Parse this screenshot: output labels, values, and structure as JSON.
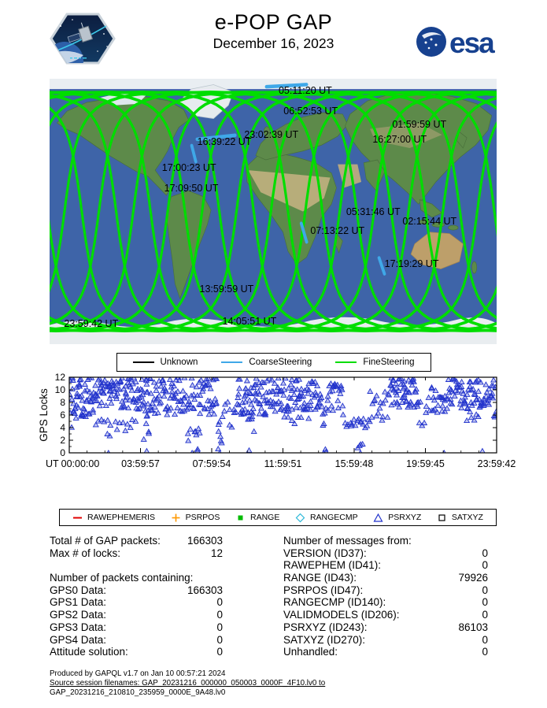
{
  "header": {
    "title": "e-POP GAP",
    "date": "December 16, 2023"
  },
  "logos": {
    "esa_text": "esa",
    "mission_patch": "e-POP mission patch"
  },
  "chart_data": [
    {
      "type": "line",
      "title": "e-POP ground tracks on world map",
      "projection": "equirectangular",
      "legend": [
        {
          "label": "Unknown",
          "color": "#000000"
        },
        {
          "label": "CoarseSteering",
          "color": "#3fa8e8"
        },
        {
          "label": "FineSteering",
          "color": "#00dd00"
        }
      ],
      "track_model": {
        "orbit_count": 13,
        "inclination_deg": 81,
        "lon_offset_deg": 12,
        "spacing_deg": 27.7,
        "color": "#00dd00",
        "stroke_width": 2.0
      },
      "coarse_segments": [
        [
          0.485,
          0.03,
          0.575,
          0.022
        ],
        [
          0.33,
          0.228,
          0.415,
          0.213
        ],
        [
          0.318,
          0.252,
          0.327,
          0.312
        ],
        [
          0.563,
          0.545,
          0.575,
          0.615
        ],
        [
          0.737,
          0.675,
          0.749,
          0.735
        ]
      ],
      "time_labels": [
        {
          "text": "05:11:20 UT",
          "x": 0.572,
          "y": 0.045
        },
        {
          "text": "06:52:53 UT",
          "x": 0.584,
          "y": 0.122
        },
        {
          "text": "01:59:59 UT",
          "x": 0.827,
          "y": 0.172
        },
        {
          "text": "16:27:00 UT",
          "x": 0.783,
          "y": 0.229
        },
        {
          "text": "23:02:39 UT",
          "x": 0.496,
          "y": 0.211
        },
        {
          "text": "16:39:22 UT",
          "x": 0.391,
          "y": 0.237
        },
        {
          "text": "17:00:23 UT",
          "x": 0.312,
          "y": 0.335
        },
        {
          "text": "17:09:50 UT",
          "x": 0.317,
          "y": 0.412
        },
        {
          "text": "05:31:46 UT",
          "x": 0.724,
          "y": 0.501
        },
        {
          "text": "07:13:22 UT",
          "x": 0.644,
          "y": 0.573
        },
        {
          "text": "02:15:44 UT",
          "x": 0.85,
          "y": 0.537
        },
        {
          "text": "17:19:29 UT",
          "x": 0.81,
          "y": 0.697
        },
        {
          "text": "13:59:59 UT",
          "x": 0.396,
          "y": 0.792
        },
        {
          "text": "14:05:51 UT",
          "x": 0.447,
          "y": 0.914
        },
        {
          "text": "23:59:42 UT",
          "x": 0.093,
          "y": 0.923
        }
      ]
    },
    {
      "type": "scatter",
      "marker": "triangle-open",
      "color": "#2233cc",
      "xlabel": "UT",
      "ylabel": "GPS Locks",
      "x_range_hours": [
        0,
        24
      ],
      "ylim": [
        0,
        12
      ],
      "yticks": [
        0,
        2,
        4,
        6,
        8,
        10,
        12
      ],
      "xticks": [
        {
          "hour": 0,
          "label": "00:00:00"
        },
        {
          "hour": 4,
          "label": "03:59:57"
        },
        {
          "hour": 8,
          "label": "07:59:54"
        },
        {
          "hour": 12,
          "label": "11:59:51"
        },
        {
          "hour": 16,
          "label": "15:59:48"
        },
        {
          "hour": 20,
          "label": "19:59:45"
        },
        {
          "hour": 24,
          "label": "23:59:42"
        }
      ],
      "scatter_bands": [
        [
          0.0,
          2.1,
          6,
          12,
          70
        ],
        [
          0.1,
          2.0,
          4,
          7.5,
          12
        ],
        [
          2.15,
          2.3,
          0,
          12,
          10
        ],
        [
          2.3,
          4.0,
          7,
          12,
          55
        ],
        [
          2.5,
          3.9,
          3.5,
          7,
          10
        ],
        [
          4.0,
          6.6,
          6,
          12,
          80
        ],
        [
          4.2,
          4.5,
          2,
          6,
          6
        ],
        [
          6.6,
          7.4,
          0.5,
          12,
          26
        ],
        [
          7.4,
          8.3,
          6,
          12,
          30
        ],
        [
          8.3,
          8.6,
          0,
          5,
          7
        ],
        [
          8.6,
          9.4,
          4,
          9,
          10
        ],
        [
          9.4,
          11.2,
          6,
          12,
          60
        ],
        [
          10.0,
          10.4,
          3,
          6,
          5
        ],
        [
          11.2,
          14.2,
          6.5,
          12,
          90
        ],
        [
          12.0,
          13.5,
          4.5,
          7,
          8
        ],
        [
          14.2,
          14.5,
          0,
          8,
          8
        ],
        [
          14.5,
          15.4,
          6,
          11,
          24
        ],
        [
          15.5,
          16.9,
          3.8,
          5.6,
          18
        ],
        [
          16.2,
          16.5,
          0,
          2,
          4
        ],
        [
          16.9,
          18.0,
          5,
          10,
          18
        ],
        [
          18.0,
          19.6,
          7,
          12,
          55
        ],
        [
          19.6,
          20.3,
          4,
          9,
          8
        ],
        [
          20.3,
          21.2,
          6,
          11,
          22
        ],
        [
          21.2,
          23.9,
          7,
          12,
          80
        ],
        [
          22.3,
          23.0,
          5,
          7,
          6
        ],
        [
          23.85,
          24.0,
          4,
          7,
          4
        ]
      ],
      "low_outliers": [
        [
          2.2,
          0
        ],
        [
          4.35,
          0.3
        ],
        [
          6.9,
          0
        ],
        [
          7.2,
          0.3
        ],
        [
          8.45,
          0
        ],
        [
          10.1,
          0.4
        ],
        [
          14.3,
          0
        ],
        [
          16.35,
          0
        ],
        [
          21.05,
          0
        ],
        [
          23.2,
          0.3
        ]
      ]
    }
  ],
  "packet_legend": [
    {
      "label": "RAWEPHEMERIS",
      "marker": "dash",
      "color": "#e00000"
    },
    {
      "label": "PSRPOS",
      "marker": "plus",
      "color": "#ff9900"
    },
    {
      "label": "RANGE",
      "marker": "square-filled",
      "color": "#00bb00"
    },
    {
      "label": "RANGECMP",
      "marker": "diamond-open",
      "color": "#2bb8d8"
    },
    {
      "label": "PSRXYZ",
      "marker": "triangle-open",
      "color": "#2233cc"
    },
    {
      "label": "SATXYZ",
      "marker": "square-open",
      "color": "#000000"
    }
  ],
  "stats": {
    "left": [
      {
        "label": "Total # of GAP packets:",
        "value": "166303"
      },
      {
        "label": "Max # of locks:",
        "value": "12"
      },
      {
        "label": "",
        "value": ""
      },
      {
        "label": "Number of packets containing:",
        "value": ""
      },
      {
        "label": "GPS0 Data:",
        "value": "166303"
      },
      {
        "label": "GPS1 Data:",
        "value": "0"
      },
      {
        "label": "GPS2 Data:",
        "value": "0"
      },
      {
        "label": "GPS3 Data:",
        "value": "0"
      },
      {
        "label": "GPS4 Data:",
        "value": "0"
      },
      {
        "label": "Attitude solution:",
        "value": "0"
      }
    ],
    "right": [
      {
        "label": "Number of messages from:",
        "value": ""
      },
      {
        "label": "VERSION (ID37):",
        "value": "0"
      },
      {
        "label": "RAWEPHEM (ID41):",
        "value": "0"
      },
      {
        "label": "RANGE (ID43):",
        "value": "79926"
      },
      {
        "label": "PSRPOS (ID47):",
        "value": "0"
      },
      {
        "label": "RANGECMP (ID140):",
        "value": "0"
      },
      {
        "label": "VALIDMODELS (ID206):",
        "value": "0"
      },
      {
        "label": "PSRXYZ (ID243):",
        "value": "86103"
      },
      {
        "label": "SATXYZ (ID270):",
        "value": "0"
      },
      {
        "label": "Unhandled:",
        "value": "0"
      }
    ]
  },
  "footer": {
    "line1": "Produced by GAPQL v1.7 on Jan 10 00:57:21 2024",
    "line2": "Source session filenames: GAP_20231216_000000_050003_0000F_4F10.lv0 to",
    "line3": "GAP_20231216_210810_235959_0000E_9A48.lv0"
  }
}
